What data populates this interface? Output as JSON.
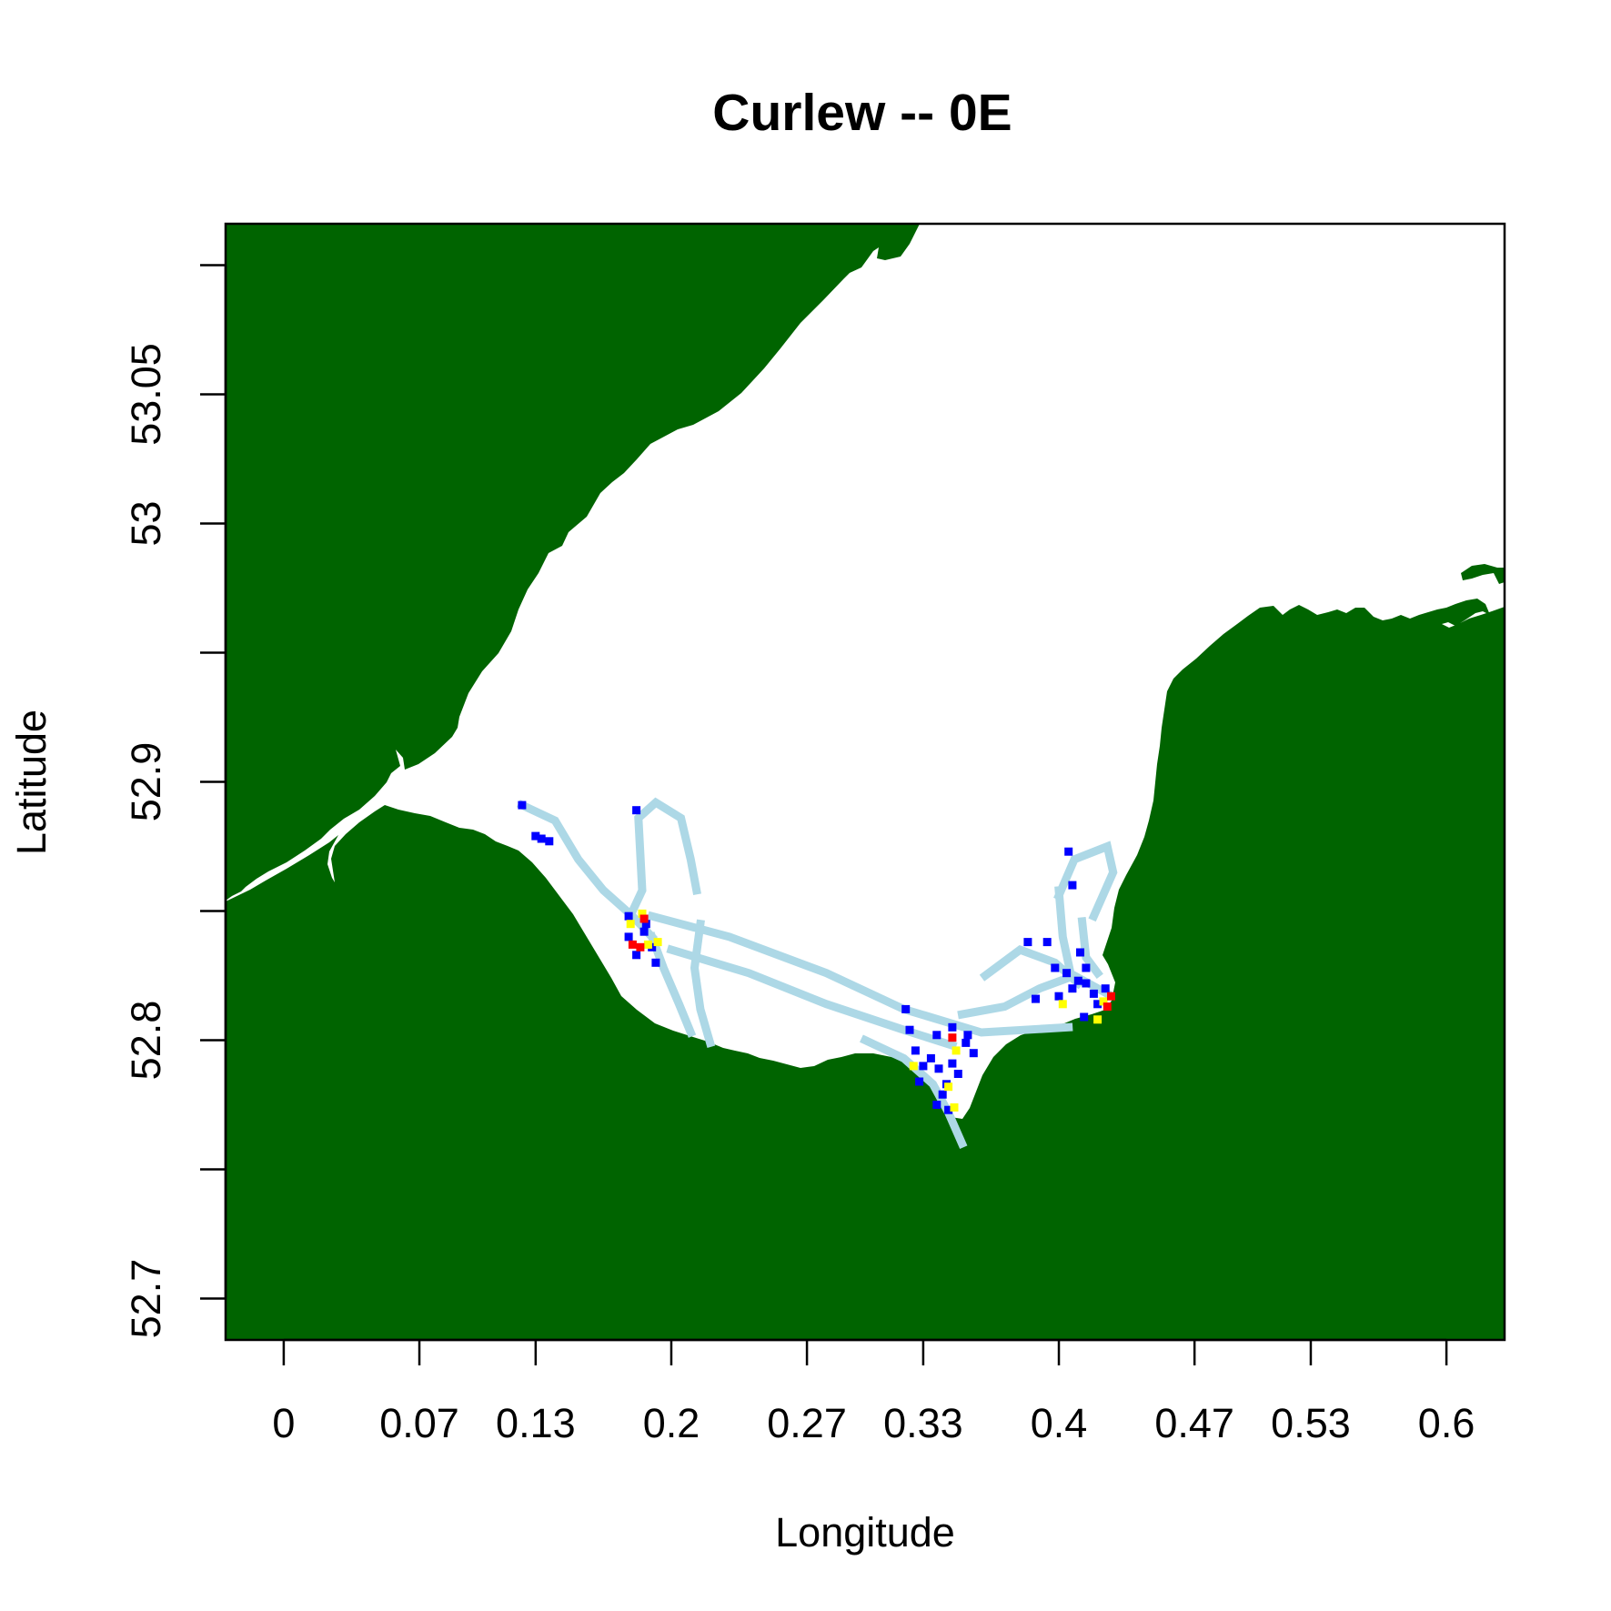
{
  "title": "Curlew -- 0E",
  "xlabel": "Longitude",
  "ylabel": "Latitude",
  "x_ticks": [
    {
      "value": 0,
      "label": "0"
    },
    {
      "value": 0.07,
      "label": "0.07"
    },
    {
      "value": 0.13,
      "label": "0.13"
    },
    {
      "value": 0.2,
      "label": "0.2"
    },
    {
      "value": 0.27,
      "label": "0.27"
    },
    {
      "value": 0.33,
      "label": "0.33"
    },
    {
      "value": 0.4,
      "label": "0.4"
    },
    {
      "value": 0.47,
      "label": "0.47"
    },
    {
      "value": 0.53,
      "label": "0.53"
    },
    {
      "value": 0.6,
      "label": "0.6"
    }
  ],
  "y_ticks": [
    {
      "value": 52.7,
      "label": "52.7"
    },
    {
      "value": 52.75,
      "label": ""
    },
    {
      "value": 52.8,
      "label": "52.8"
    },
    {
      "value": 52.85,
      "label": ""
    },
    {
      "value": 52.9,
      "label": "52.9"
    },
    {
      "value": 52.95,
      "label": ""
    },
    {
      "value": 53.0,
      "label": "53"
    },
    {
      "value": 53.05,
      "label": "53.05"
    },
    {
      "value": 53.1,
      "label": ""
    }
  ],
  "map": {
    "land_color": "#006400",
    "water_color": "#ffffff",
    "xlim": [
      -0.03,
      0.63
    ],
    "ylim": [
      52.684,
      53.116
    ]
  },
  "colors": {
    "low": "#add8e6",
    "medium": "#0000ff",
    "high": "#ffff00",
    "very_high": "#ff0000"
  },
  "chart_data": {
    "type": "heatmap",
    "title": "Curlew -- 0E",
    "xlabel": "Longitude",
    "ylabel": "Latitude",
    "xlim": [
      -0.03,
      0.63
    ],
    "ylim": [
      52.684,
      53.116
    ],
    "series": [
      {
        "level": "low",
        "color": "#add8e6",
        "tracks": [
          [
            [
              0.123,
              52.891
            ],
            [
              0.14,
              52.885
            ],
            [
              0.152,
              52.87
            ],
            [
              0.165,
              52.858
            ],
            [
              0.18,
              52.848
            ],
            [
              0.19,
              52.84
            ]
          ],
          [
            [
              0.18,
              52.85
            ],
            [
              0.185,
              52.858
            ],
            [
              0.183,
              52.886
            ],
            [
              0.192,
              52.892
            ],
            [
              0.205,
              52.886
            ],
            [
              0.21,
              52.87
            ],
            [
              0.213,
              52.858
            ]
          ],
          [
            [
              0.19,
              52.848
            ],
            [
              0.23,
              52.84
            ],
            [
              0.28,
              52.826
            ],
            [
              0.32,
              52.812
            ],
            [
              0.36,
              52.803
            ],
            [
              0.405,
              52.805
            ]
          ],
          [
            [
              0.2,
              52.835
            ],
            [
              0.24,
              52.826
            ],
            [
              0.28,
              52.814
            ],
            [
              0.32,
              52.804
            ],
            [
              0.345,
              52.798
            ]
          ],
          [
            [
              0.215,
              52.845
            ],
            [
              0.212,
              52.828
            ],
            [
              0.215,
              52.812
            ],
            [
              0.22,
              52.799
            ]
          ],
          [
            [
              0.19,
              52.84
            ],
            [
              0.196,
              52.828
            ],
            [
              0.204,
              52.814
            ],
            [
              0.21,
              52.803
            ]
          ],
          [
            [
              0.3,
              52.8
            ],
            [
              0.32,
              52.793
            ],
            [
              0.335,
              52.783
            ],
            [
              0.343,
              52.772
            ],
            [
              0.35,
              52.76
            ]
          ],
          [
            [
              0.35,
              52.81
            ],
            [
              0.372,
              52.813
            ],
            [
              0.39,
              52.82
            ],
            [
              0.408,
              52.825
            ],
            [
              0.425,
              52.818
            ]
          ],
          [
            [
              0.4,
              52.856
            ],
            [
              0.408,
              52.87
            ],
            [
              0.425,
              52.875
            ],
            [
              0.428,
              52.865
            ],
            [
              0.418,
              52.848
            ]
          ],
          [
            [
              0.4,
              52.858
            ],
            [
              0.402,
              52.84
            ],
            [
              0.406,
              52.826
            ]
          ],
          [
            [
              0.362,
              52.825
            ],
            [
              0.38,
              52.835
            ],
            [
              0.398,
              52.83
            ],
            [
              0.41,
              52.822
            ]
          ],
          [
            [
              0.412,
              52.846
            ],
            [
              0.414,
              52.832
            ],
            [
              0.42,
              52.826
            ]
          ]
        ]
      },
      {
        "level": "medium",
        "color": "#0000ff",
        "cells": [
          [
            0.123,
            52.891
          ],
          [
            0.13,
            52.879
          ],
          [
            0.133,
            52.878
          ],
          [
            0.137,
            52.877
          ],
          [
            0.178,
            52.848
          ],
          [
            0.178,
            52.84
          ],
          [
            0.182,
            52.833
          ],
          [
            0.186,
            52.842
          ],
          [
            0.19,
            52.836
          ],
          [
            0.182,
            52.889
          ],
          [
            0.187,
            52.845
          ],
          [
            0.192,
            52.83
          ],
          [
            0.321,
            52.812
          ],
          [
            0.323,
            52.804
          ],
          [
            0.326,
            52.796
          ],
          [
            0.33,
            52.79
          ],
          [
            0.334,
            52.793
          ],
          [
            0.338,
            52.789
          ],
          [
            0.342,
            52.783
          ],
          [
            0.345,
            52.791
          ],
          [
            0.348,
            52.787
          ],
          [
            0.34,
            52.779
          ],
          [
            0.337,
            52.775
          ],
          [
            0.343,
            52.773
          ],
          [
            0.352,
            52.799
          ],
          [
            0.356,
            52.795
          ],
          [
            0.345,
            52.805
          ],
          [
            0.353,
            52.802
          ],
          [
            0.337,
            52.802
          ],
          [
            0.328,
            52.784
          ],
          [
            0.405,
            52.873
          ],
          [
            0.407,
            52.86
          ],
          [
            0.384,
            52.838
          ],
          [
            0.394,
            52.838
          ],
          [
            0.398,
            52.828
          ],
          [
            0.404,
            52.826
          ],
          [
            0.407,
            52.82
          ],
          [
            0.41,
            52.823
          ],
          [
            0.414,
            52.822
          ],
          [
            0.418,
            52.818
          ],
          [
            0.42,
            52.814
          ],
          [
            0.424,
            52.82
          ],
          [
            0.411,
            52.834
          ],
          [
            0.414,
            52.828
          ],
          [
            0.388,
            52.816
          ],
          [
            0.4,
            52.817
          ],
          [
            0.413,
            52.809
          ]
        ]
      },
      {
        "level": "high",
        "color": "#ffff00",
        "cells": [
          [
            0.179,
            52.845
          ],
          [
            0.185,
            52.849
          ],
          [
            0.188,
            52.837
          ],
          [
            0.193,
            52.838
          ],
          [
            0.325,
            52.79
          ],
          [
            0.343,
            52.782
          ],
          [
            0.347,
            52.796
          ],
          [
            0.346,
            52.774
          ],
          [
            0.42,
            52.808
          ],
          [
            0.423,
            52.815
          ],
          [
            0.402,
            52.814
          ]
        ]
      },
      {
        "level": "very_high",
        "color": "#ff0000",
        "cells": [
          [
            0.18,
            52.837
          ],
          [
            0.184,
            52.836
          ],
          [
            0.186,
            52.847
          ],
          [
            0.345,
            52.801
          ],
          [
            0.425,
            52.813
          ],
          [
            0.427,
            52.817
          ]
        ]
      }
    ]
  }
}
